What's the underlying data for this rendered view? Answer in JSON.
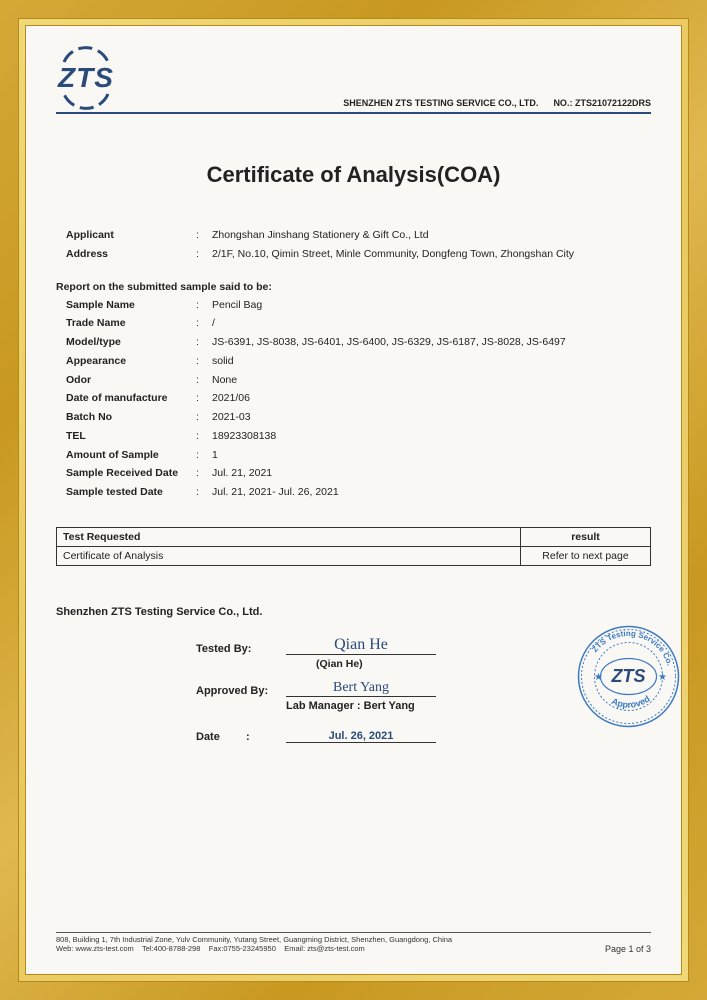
{
  "logo": {
    "text": "ZTS",
    "arc_color": "#2a4a7a"
  },
  "header": {
    "company": "SHENZHEN ZTS TESTING SERVICE CO., LTD.",
    "cert_no_label": "NO.:",
    "cert_no": "ZTS21072122DRS"
  },
  "title": "Certificate of Analysis(COA)",
  "applicant_block": [
    {
      "label": "Applicant",
      "value": "Zhongshan Jinshang Stationery & Gift Co., Ltd"
    },
    {
      "label": "Address",
      "value": "2/1F, No.10, Qimin Street, Minle Community, Dongfeng Town, Zhongshan City"
    }
  ],
  "report_header": "Report on the submitted sample said to be:",
  "sample_block": [
    {
      "label": "Sample Name",
      "value": "Pencil Bag"
    },
    {
      "label": "Trade Name",
      "value": "/"
    },
    {
      "label": "Model/type",
      "value": "JS-6391, JS-8038, JS-6401, JS-6400, JS-6329, JS-6187, JS-8028, JS-6497"
    },
    {
      "label": "Appearance",
      "value": "solid"
    },
    {
      "label": "Odor",
      "value": "None"
    },
    {
      "label": "Date of manufacture",
      "value": "2021/06"
    },
    {
      "label": "Batch No",
      "value": "2021-03"
    },
    {
      "label": "TEL",
      "value": "18923308138"
    },
    {
      "label": "Amount of Sample",
      "value": "1"
    },
    {
      "label": "Sample Received Date",
      "value": "Jul. 21, 2021"
    },
    {
      "label": "Sample tested Date",
      "value": "Jul. 21, 2021- Jul. 26, 2021"
    }
  ],
  "test_table": {
    "headers": [
      "Test Requested",
      "result"
    ],
    "rows": [
      [
        "Certificate of Analysis",
        "Refer to next page"
      ]
    ]
  },
  "company_line": "Shenzhen ZTS Testing Service Co., Ltd.",
  "signatures": {
    "tested_label": "Tested   By:",
    "tested_sig": "Qian He",
    "tested_printed": "(Qian He)",
    "approved_label": "Approved By:",
    "approved_sig": "Bert Yang",
    "lab_mgr_label": "Lab Manager  :  Bert Yang",
    "date_label": "Date",
    "date_value": "Jul. 26, 2021"
  },
  "stamp": {
    "outer_color": "#3b7ac4",
    "text_top": "ZTS Testing Service",
    "text_bottom": "Approved",
    "center_text": "ZTS"
  },
  "footer": {
    "line1": "808, Building 1, 7th Industrial Zone, Yulv Community, Yutang Street, Guangming District, Shenzhen, Guangdong, China",
    "line2_web": "Web: www.zts-test.com",
    "line2_tel": "Tel:400-8788-298",
    "line2_fax": "Fax:0755-23245950",
    "line2_email": "Email: zts@zts-test.com",
    "page": "Page 1 of 3"
  },
  "colors": {
    "frame_gold": "#d4a838",
    "border_blue": "#2a4a7a",
    "paper_bg": "#faf8f4"
  }
}
